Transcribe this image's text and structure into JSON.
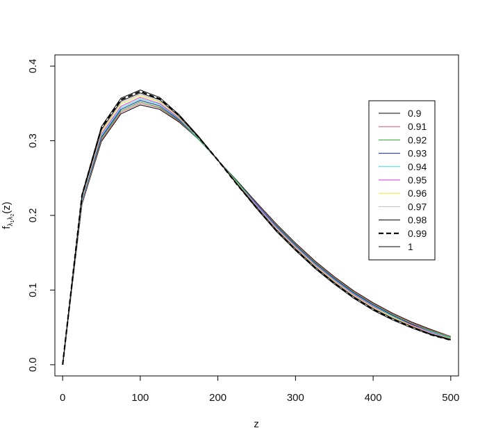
{
  "chart_data": {
    "type": "line",
    "title": "",
    "xlabel": "z",
    "ylabel": {
      "base": "f",
      "sub1": "λ",
      "sub1_sub": "1",
      "sub2": "λ",
      "sub2_sub": "2",
      "arg": "(z)"
    },
    "xlim": [
      -10,
      510
    ],
    "ylim": [
      -0.015,
      0.415
    ],
    "xticks": [
      0,
      100,
      200,
      300,
      400,
      500
    ],
    "yticks": [
      0.0,
      0.1,
      0.2,
      0.3,
      0.4
    ],
    "x_tick_labels": [
      "0",
      "100",
      "200",
      "300",
      "400",
      "500"
    ],
    "y_tick_labels": [
      "0.0",
      "0.1",
      "0.2",
      "0.3",
      "0.4"
    ],
    "grid": false,
    "legend_position": "top-right",
    "x": [
      0,
      25,
      50,
      75,
      100,
      125,
      150,
      175,
      200,
      225,
      250,
      275,
      300,
      325,
      350,
      375,
      400,
      425,
      450,
      475,
      500
    ],
    "series": [
      {
        "name": "0.9",
        "color": "#000000",
        "dash": "solid",
        "values": [
          0.0,
          0.215,
          0.299,
          0.336,
          0.348,
          0.342,
          0.325,
          0.302,
          0.274,
          0.246,
          0.217,
          0.189,
          0.163,
          0.139,
          0.118,
          0.099,
          0.083,
          0.069,
          0.057,
          0.047,
          0.038
        ]
      },
      {
        "name": "0.91",
        "color": "#DF536B",
        "dash": "solid",
        "values": [
          0.0,
          0.216,
          0.301,
          0.338,
          0.35,
          0.344,
          0.326,
          0.302,
          0.274,
          0.245,
          0.216,
          0.188,
          0.162,
          0.138,
          0.117,
          0.098,
          0.082,
          0.068,
          0.056,
          0.046,
          0.038
        ]
      },
      {
        "name": "0.92",
        "color": "#22AA22",
        "dash": "solid",
        "values": [
          0.0,
          0.218,
          0.303,
          0.34,
          0.352,
          0.345,
          0.327,
          0.302,
          0.274,
          0.245,
          0.215,
          0.187,
          0.161,
          0.137,
          0.116,
          0.097,
          0.081,
          0.067,
          0.055,
          0.045,
          0.037
        ]
      },
      {
        "name": "0.93",
        "color": "#1A1AB8",
        "dash": "solid",
        "values": [
          0.0,
          0.219,
          0.305,
          0.342,
          0.354,
          0.347,
          0.328,
          0.303,
          0.274,
          0.244,
          0.215,
          0.186,
          0.16,
          0.136,
          0.115,
          0.096,
          0.08,
          0.066,
          0.054,
          0.044,
          0.036
        ]
      },
      {
        "name": "0.94",
        "color": "#33DDDD",
        "dash": "solid",
        "values": [
          0.0,
          0.22,
          0.307,
          0.344,
          0.356,
          0.349,
          0.329,
          0.303,
          0.274,
          0.244,
          0.214,
          0.185,
          0.159,
          0.135,
          0.114,
          0.095,
          0.079,
          0.065,
          0.053,
          0.044,
          0.036
        ]
      },
      {
        "name": "0.95",
        "color": "#DD33DD",
        "dash": "solid",
        "values": [
          0.0,
          0.222,
          0.309,
          0.346,
          0.358,
          0.35,
          0.33,
          0.304,
          0.274,
          0.243,
          0.213,
          0.184,
          0.158,
          0.134,
          0.113,
          0.094,
          0.078,
          0.064,
          0.053,
          0.043,
          0.035
        ]
      },
      {
        "name": "0.96",
        "color": "#F5E531",
        "dash": "solid",
        "values": [
          0.0,
          0.223,
          0.311,
          0.349,
          0.36,
          0.352,
          0.331,
          0.304,
          0.274,
          0.243,
          0.212,
          0.183,
          0.157,
          0.133,
          0.112,
          0.093,
          0.077,
          0.064,
          0.052,
          0.042,
          0.035
        ]
      },
      {
        "name": "0.97",
        "color": "#BEBEBE",
        "dash": "solid",
        "values": [
          0.0,
          0.224,
          0.313,
          0.351,
          0.362,
          0.353,
          0.332,
          0.304,
          0.274,
          0.242,
          0.212,
          0.182,
          0.156,
          0.132,
          0.111,
          0.092,
          0.076,
          0.063,
          0.051,
          0.042,
          0.034
        ]
      },
      {
        "name": "0.98",
        "color": "#000000",
        "dash": "solid",
        "values": [
          0.0,
          0.226,
          0.315,
          0.353,
          0.364,
          0.355,
          0.333,
          0.305,
          0.274,
          0.242,
          0.211,
          0.181,
          0.155,
          0.131,
          0.11,
          0.091,
          0.075,
          0.062,
          0.051,
          0.041,
          0.034
        ]
      },
      {
        "name": "0.99",
        "color": "#000000",
        "dash": "dashed",
        "values": [
          0.0,
          0.227,
          0.317,
          0.355,
          0.366,
          0.356,
          0.334,
          0.305,
          0.274,
          0.241,
          0.21,
          0.18,
          0.154,
          0.13,
          0.109,
          0.09,
          0.074,
          0.061,
          0.05,
          0.04,
          0.033
        ]
      },
      {
        "name": "1",
        "color": "#000000",
        "dash": "solid",
        "values": [
          0.0,
          0.228,
          0.319,
          0.357,
          0.368,
          0.358,
          0.335,
          0.306,
          0.274,
          0.241,
          0.209,
          0.179,
          0.153,
          0.129,
          0.108,
          0.089,
          0.073,
          0.06,
          0.049,
          0.04,
          0.033
        ]
      }
    ]
  }
}
